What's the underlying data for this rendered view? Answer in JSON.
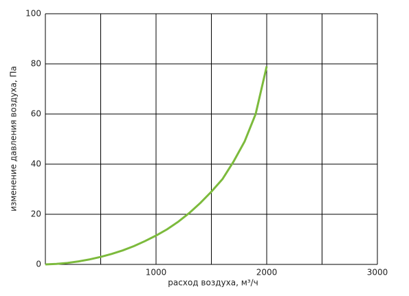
{
  "chart_data": {
    "type": "line",
    "x_label": "расход воздуха, м³/ч",
    "y_label": "изменение давления воздуха, Па",
    "x": [
      0,
      100,
      200,
      300,
      400,
      500,
      600,
      700,
      800,
      900,
      1000,
      1100,
      1200,
      1300,
      1400,
      1500,
      1600,
      1700,
      1800,
      1900,
      2000
    ],
    "series": [
      {
        "color": "#7cba3c",
        "values": [
          0,
          0.2,
          0.6,
          1.2,
          2,
          3,
          4.2,
          5.6,
          7.3,
          9.3,
          11.5,
          14,
          17,
          20.5,
          24.5,
          29,
          34,
          41,
          49,
          60,
          79
        ]
      }
    ],
    "xlim": [
      0,
      3000
    ],
    "xticks": [
      1000,
      2000,
      3000
    ],
    "xgrid": [
      0,
      500,
      1000,
      1500,
      2000,
      2500,
      3000
    ],
    "ylim": [
      0,
      100
    ],
    "yticks": [
      0,
      20,
      40,
      60,
      80,
      100
    ],
    "grid": true
  }
}
